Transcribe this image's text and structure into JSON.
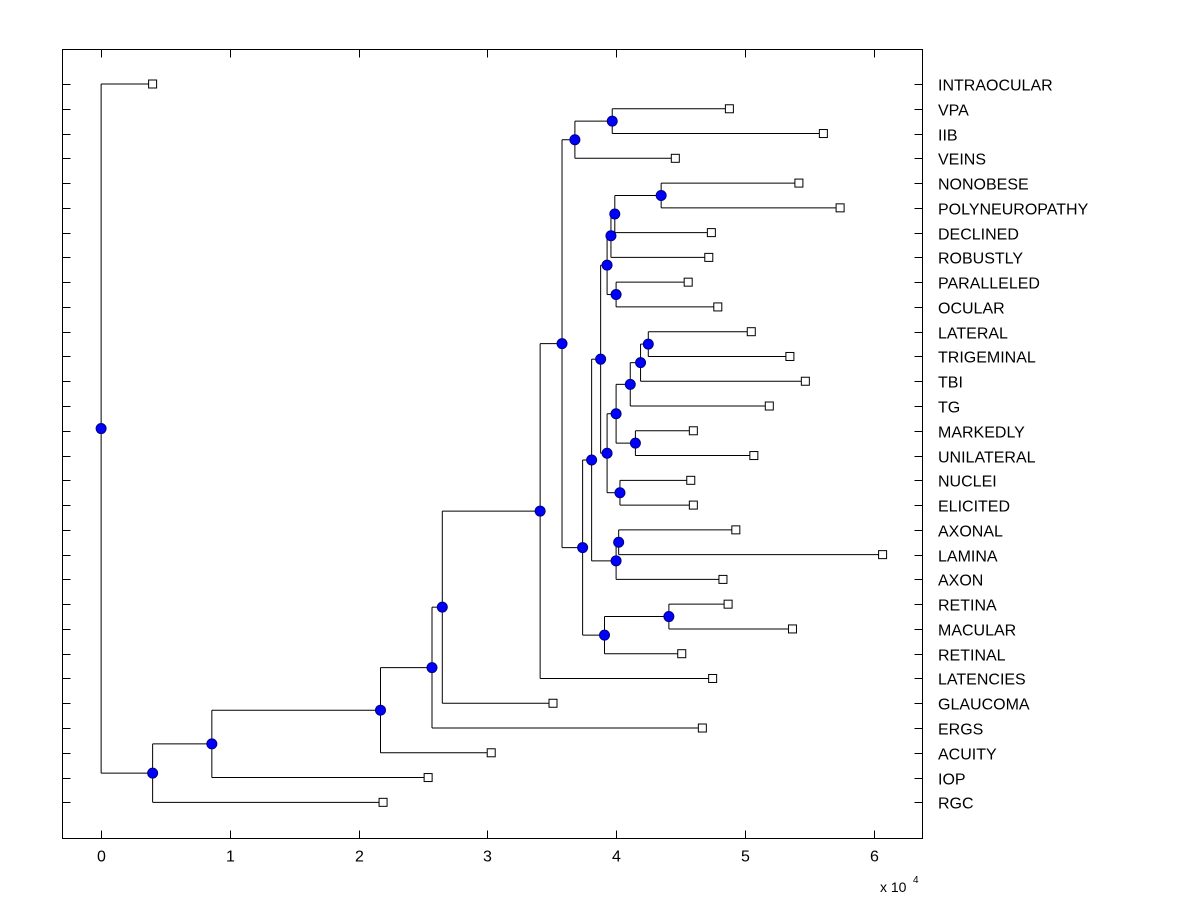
{
  "chart_data": {
    "type": "dendrogram",
    "title": "",
    "xlabel": "",
    "ylabel": "",
    "x_multiplier_label": "x 10",
    "x_multiplier_exponent": "4",
    "xlim": [
      -0.3,
      6.38
    ],
    "xticks": [
      0,
      1,
      2,
      3,
      4,
      5,
      6
    ],
    "xtick_labels": [
      "0",
      "1",
      "2",
      "3",
      "4",
      "5",
      "6"
    ],
    "grid": false,
    "colors": {
      "node_fill": "#0000ff",
      "node_edge": "#000080",
      "leaf_fill": "#ffffff",
      "line": "#000000"
    },
    "leaves": [
      {
        "label": "INTRAOCULAR",
        "x": 0.4
      },
      {
        "label": "VPA",
        "x": 4.88
      },
      {
        "label": "IIB",
        "x": 5.61
      },
      {
        "label": "VEINS",
        "x": 4.46
      },
      {
        "label": "NONOBESE",
        "x": 5.42
      },
      {
        "label": "POLYNEUROPATHY",
        "x": 5.74
      },
      {
        "label": "DECLINED",
        "x": 4.74
      },
      {
        "label": "ROBUSTLY",
        "x": 4.72
      },
      {
        "label": "PARALLELED",
        "x": 4.56
      },
      {
        "label": "OCULAR",
        "x": 4.79
      },
      {
        "label": "LATERAL",
        "x": 5.05
      },
      {
        "label": "TRIGEMINAL",
        "x": 5.35
      },
      {
        "label": "TBI",
        "x": 5.47
      },
      {
        "label": "TG",
        "x": 5.19
      },
      {
        "label": "MARKEDLY",
        "x": 4.6
      },
      {
        "label": "UNILATERAL",
        "x": 5.07
      },
      {
        "label": "NUCLEI",
        "x": 4.58
      },
      {
        "label": "ELICITED",
        "x": 4.6
      },
      {
        "label": "AXONAL",
        "x": 4.93
      },
      {
        "label": "LAMINA",
        "x": 6.07
      },
      {
        "label": "AXON",
        "x": 4.83
      },
      {
        "label": "RETINA",
        "x": 4.87
      },
      {
        "label": "MACULAR",
        "x": 5.37
      },
      {
        "label": "RETINAL",
        "x": 4.51
      },
      {
        "label": "LATENCIES",
        "x": 4.75
      },
      {
        "label": "GLAUCOMA",
        "x": 3.51
      },
      {
        "label": "ERGS",
        "x": 4.67
      },
      {
        "label": "ACUITY",
        "x": 3.03
      },
      {
        "label": "IOP",
        "x": 2.54
      },
      {
        "label": "RGC",
        "x": 2.19
      }
    ],
    "nodes": [
      {
        "id": "n1",
        "x": 3.97,
        "children": [
          "L1",
          "L2"
        ]
      },
      {
        "id": "n2",
        "x": 3.68,
        "children": [
          "n1",
          "L3"
        ]
      },
      {
        "id": "n3",
        "x": 4.35,
        "children": [
          "L4",
          "L5"
        ]
      },
      {
        "id": "n4",
        "x": 3.99,
        "children": [
          "n3",
          "L6"
        ]
      },
      {
        "id": "n5",
        "x": 3.96,
        "children": [
          "n4",
          "L7"
        ]
      },
      {
        "id": "n6",
        "x": 4.0,
        "children": [
          "L8",
          "L9"
        ]
      },
      {
        "id": "n7",
        "x": 3.93,
        "children": [
          "n5",
          "n6"
        ]
      },
      {
        "id": "n8",
        "x": 4.25,
        "children": [
          "L10",
          "L11"
        ]
      },
      {
        "id": "n9",
        "x": 4.19,
        "children": [
          "n8",
          "L12"
        ]
      },
      {
        "id": "n10",
        "x": 4.11,
        "children": [
          "n9",
          "L13"
        ]
      },
      {
        "id": "n11",
        "x": 4.15,
        "children": [
          "L14",
          "L15"
        ]
      },
      {
        "id": "n12",
        "x": 4.0,
        "children": [
          "n10",
          "n11"
        ]
      },
      {
        "id": "n13",
        "x": 4.03,
        "children": [
          "L16",
          "L17"
        ]
      },
      {
        "id": "n14",
        "x": 3.93,
        "children": [
          "n12",
          "n13"
        ]
      },
      {
        "id": "n15",
        "x": 3.88,
        "children": [
          "n7",
          "n14"
        ]
      },
      {
        "id": "n16",
        "x": 4.02,
        "children": [
          "L18",
          "L19"
        ]
      },
      {
        "id": "n17",
        "x": 4.0,
        "children": [
          "n16",
          "L20"
        ]
      },
      {
        "id": "n18",
        "x": 3.81,
        "children": [
          "n15",
          "n17"
        ]
      },
      {
        "id": "n19",
        "x": 4.41,
        "children": [
          "L21",
          "L22"
        ]
      },
      {
        "id": "n20",
        "x": 3.91,
        "children": [
          "n19",
          "L23"
        ]
      },
      {
        "id": "n21",
        "x": 3.74,
        "children": [
          "n18",
          "n20"
        ]
      },
      {
        "id": "n22",
        "x": 3.58,
        "children": [
          "n2",
          "n21"
        ]
      },
      {
        "id": "n23",
        "x": 3.41,
        "children": [
          "n22",
          "L24"
        ]
      },
      {
        "id": "n24",
        "x": 2.65,
        "children": [
          "n23",
          "L25"
        ]
      },
      {
        "id": "n25",
        "x": 2.57,
        "children": [
          "n24",
          "L26"
        ]
      },
      {
        "id": "n26",
        "x": 2.17,
        "children": [
          "n25",
          "L27"
        ]
      },
      {
        "id": "n27",
        "x": 0.86,
        "children": [
          "n26",
          "L28"
        ]
      },
      {
        "id": "n28",
        "x": 0.4,
        "children": [
          "n27",
          "L29"
        ]
      },
      {
        "id": "root",
        "x": 0.0,
        "children": [
          "L0",
          "n28"
        ]
      }
    ]
  }
}
